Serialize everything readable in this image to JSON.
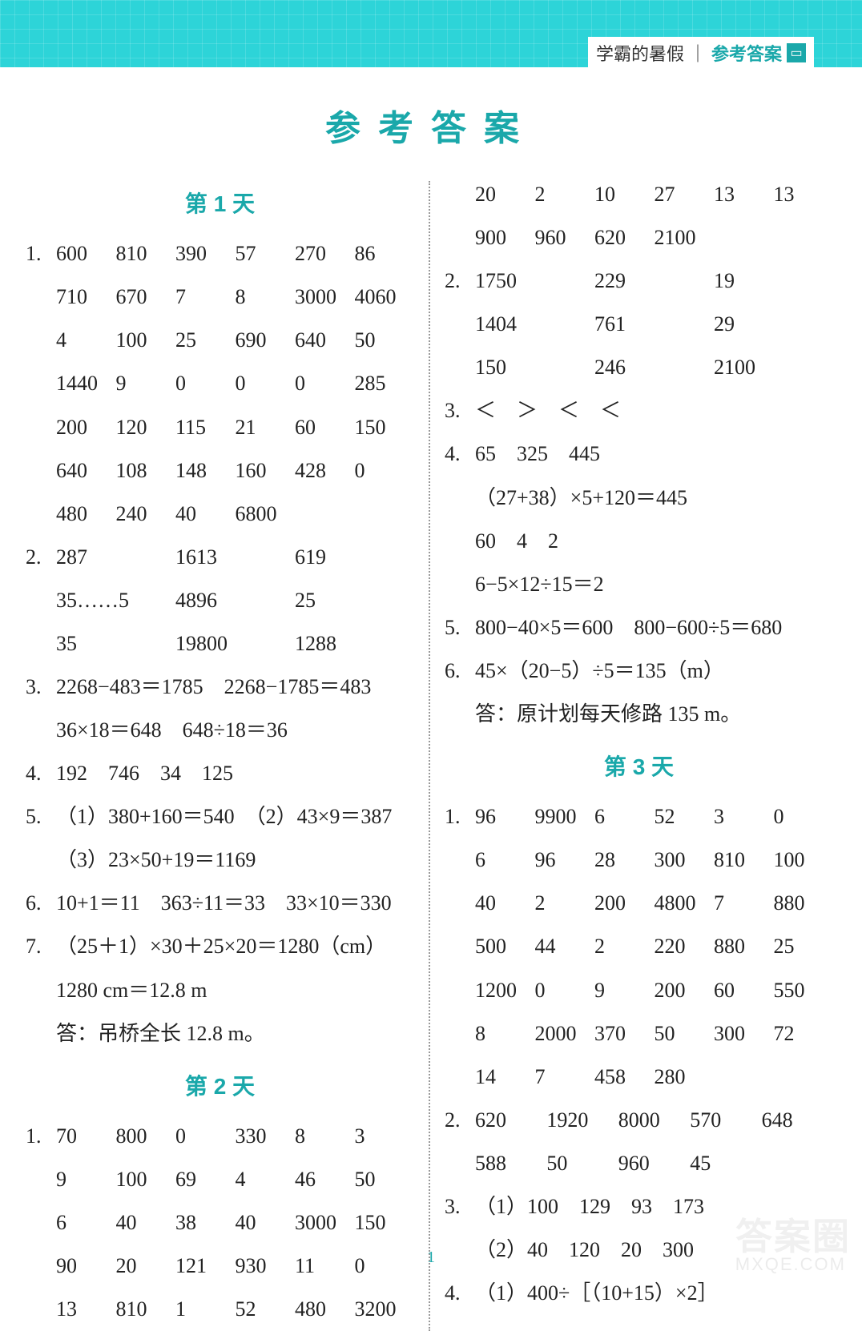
{
  "header": {
    "tag_plain": "学霸的暑假",
    "tag_sep": "｜",
    "tag_accent": "参考答案"
  },
  "title": "参考答案",
  "watermark": "答案圈",
  "watermark_sub": "MXQE.COM",
  "page_number": "1",
  "days": {
    "d1": "第 1 天",
    "d2": "第 2 天",
    "d3": "第 3 天"
  },
  "left": {
    "q1": [
      "600",
      "810",
      "390",
      "57",
      "270",
      "86",
      "710",
      "670",
      "7",
      "8",
      "3000",
      "4060",
      "4",
      "100",
      "25",
      "690",
      "640",
      "50",
      "1440",
      "9",
      "0",
      "0",
      "0",
      "285",
      "200",
      "120",
      "115",
      "21",
      "60",
      "150",
      "640",
      "108",
      "148",
      "160",
      "428",
      "0",
      "480",
      "240",
      "40",
      "6800",
      "",
      ""
    ],
    "q2": [
      "287",
      "1613",
      "619",
      "35……5",
      "4896",
      "25",
      "35",
      "19800",
      "1288"
    ],
    "q3a": "2268−483＝1785　2268−1785＝483",
    "q3b": "36×18＝648　648÷18＝36",
    "q4": "192　746　34　125",
    "q5a": "（1）380+160＝540　（2）43×9＝387",
    "q5b": "（3）23×50+19＝1169",
    "q6": "10+1＝11　363÷11＝33　33×10＝330",
    "q7a": "（25＋1）×30＋25×20＝1280（cm）",
    "q7b": "1280 cm＝12.8 m",
    "q7c": "答：吊桥全长 12.8 m。",
    "d2q1": [
      "70",
      "800",
      "0",
      "330",
      "8",
      "3",
      "9",
      "100",
      "69",
      "4",
      "46",
      "50",
      "6",
      "40",
      "38",
      "40",
      "3000",
      "150",
      "90",
      "20",
      "121",
      "930",
      "11",
      "0",
      "13",
      "810",
      "1",
      "52",
      "480",
      "3200"
    ]
  },
  "right": {
    "cont1": [
      "20",
      "2",
      "10",
      "27",
      "13",
      "13",
      "900",
      "960",
      "620",
      "2100",
      "",
      ""
    ],
    "q2": [
      "1750",
      "229",
      "19",
      "1404",
      "761",
      "29",
      "150",
      "246",
      "2100"
    ],
    "q3": "＜　＞　＜　＜",
    "q4a": "65　325　445",
    "q4b": "（27+38）×5+120＝445",
    "q4c": "60　4　2",
    "q4d": "6−5×12÷15＝2",
    "q5": "800−40×5＝600　800−600÷5＝680",
    "q6a": "45×（20−5）÷5＝135（m）",
    "q6b": "答：原计划每天修路 135 m。",
    "d3q1": [
      "96",
      "9900",
      "6",
      "52",
      "3",
      "0",
      "6",
      "96",
      "28",
      "300",
      "810",
      "100",
      "40",
      "2",
      "200",
      "4800",
      "7",
      "880",
      "500",
      "44",
      "2",
      "220",
      "880",
      "25",
      "1200",
      "0",
      "9",
      "200",
      "60",
      "550",
      "8",
      "2000",
      "370",
      "50",
      "300",
      "72",
      "14",
      "7",
      "458",
      "280",
      "",
      ""
    ],
    "d3q2": [
      "620",
      "1920",
      "8000",
      "570",
      "648",
      "588",
      "50",
      "960",
      "45",
      ""
    ],
    "d3q3a": "（1）100　129　93　173",
    "d3q3b": "（2）40　120　20　300",
    "d3q4": "（1）400÷［（10+15）×2］"
  }
}
